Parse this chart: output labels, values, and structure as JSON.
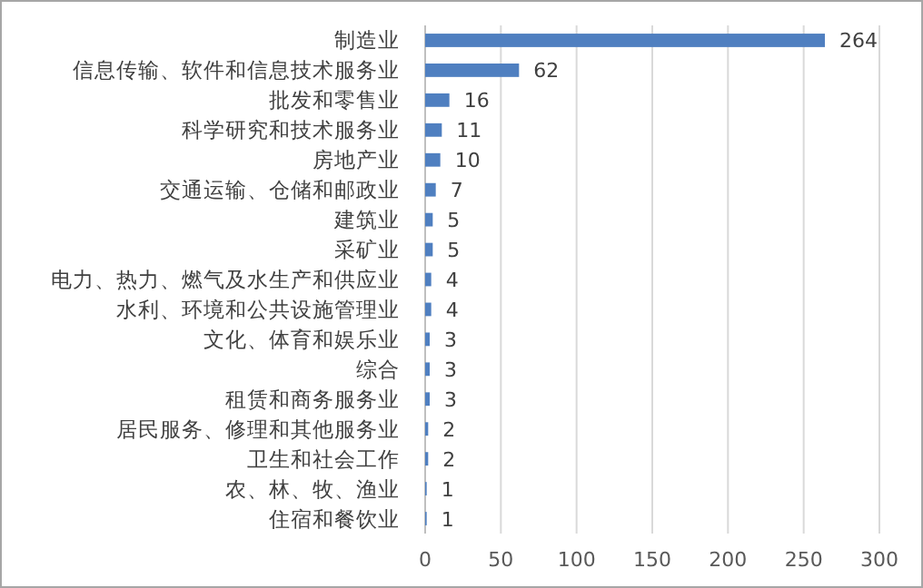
{
  "chart_data": {
    "type": "bar",
    "orientation": "horizontal",
    "categories": [
      "制造业",
      "信息传输、软件和信息技术服务业",
      "批发和零售业",
      "科学研究和技术服务业",
      "房地产业",
      "交通运输、仓储和邮政业",
      "建筑业",
      "采矿业",
      "电力、热力、燃气及水生产和供应业",
      "水利、环境和公共设施管理业",
      "文化、体育和娱乐业",
      "综合",
      "租赁和商务服务业",
      "居民服务、修理和其他服务业",
      "卫生和社会工作",
      "农、林、牧、渔业",
      "住宿和餐饮业"
    ],
    "values": [
      264,
      62,
      16,
      11,
      10,
      7,
      5,
      5,
      4,
      4,
      3,
      3,
      3,
      2,
      2,
      1,
      1
    ],
    "color": "#4f7fc0",
    "xlim": [
      0,
      300
    ],
    "xticks": [
      0,
      50,
      100,
      150,
      200,
      250,
      300
    ],
    "grid": "x",
    "data_labels": true
  }
}
